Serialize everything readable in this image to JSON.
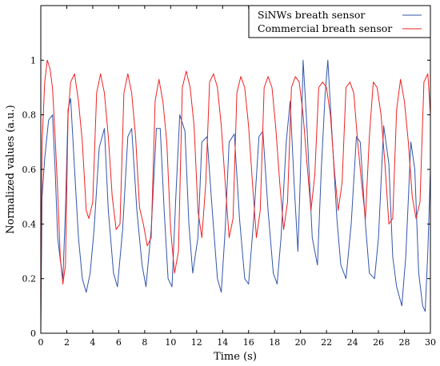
{
  "chart_data": {
    "type": "line",
    "title": "",
    "xlabel": "Time (s)",
    "ylabel": "Normalized values (a.u.)",
    "xlim": [
      0,
      30
    ],
    "ylim": [
      0,
      1.2
    ],
    "xticks": [
      0,
      2,
      4,
      6,
      8,
      10,
      12,
      14,
      16,
      18,
      20,
      22,
      24,
      26,
      28,
      30
    ],
    "yticks": [
      0,
      0.2,
      0.4,
      0.6,
      0.8,
      1
    ],
    "xtick_labels": [
      "0",
      "2",
      "4",
      "6",
      "8",
      "10",
      "12",
      "14",
      "16",
      "18",
      "20",
      "22",
      "24",
      "26",
      "28",
      "30"
    ],
    "ytick_labels": [
      "0",
      "0.2",
      "0.4",
      "0.6",
      "0.8",
      "1"
    ],
    "grid": false,
    "legend": {
      "position": "top-right"
    },
    "series": [
      {
        "name": "SiNWs breath sensor",
        "color": "#3355aa",
        "x": [
          0.0,
          0.1,
          0.3,
          0.6,
          0.9,
          1.1,
          1.3,
          1.5,
          1.7,
          1.9,
          2.1,
          2.3,
          2.6,
          2.9,
          3.2,
          3.5,
          3.8,
          4.1,
          4.5,
          4.9,
          5.2,
          5.6,
          5.9,
          6.3,
          6.7,
          7.0,
          7.4,
          7.8,
          8.1,
          8.5,
          8.9,
          9.2,
          9.5,
          9.8,
          10.1,
          10.4,
          10.7,
          11.1,
          11.4,
          11.7,
          12.1,
          12.4,
          12.8,
          13.2,
          13.6,
          13.9,
          14.2,
          14.5,
          14.9,
          15.3,
          15.7,
          16.0,
          16.4,
          16.8,
          17.1,
          17.5,
          17.9,
          18.2,
          18.5,
          18.9,
          19.2,
          19.5,
          19.8,
          20.0,
          20.2,
          20.5,
          20.9,
          21.3,
          21.6,
          21.9,
          22.1,
          22.4,
          22.8,
          23.1,
          23.5,
          23.9,
          24.3,
          24.6,
          25.0,
          25.3,
          25.7,
          26.0,
          26.4,
          26.8,
          27.1,
          27.4,
          27.8,
          28.1,
          28.5,
          28.8,
          29.1,
          29.4,
          29.6,
          29.8,
          30.0
        ],
        "y": [
          0.0,
          0.5,
          0.64,
          0.78,
          0.8,
          0.6,
          0.35,
          0.27,
          0.2,
          0.45,
          0.82,
          0.86,
          0.6,
          0.35,
          0.2,
          0.15,
          0.22,
          0.38,
          0.68,
          0.75,
          0.45,
          0.22,
          0.17,
          0.38,
          0.72,
          0.75,
          0.45,
          0.25,
          0.17,
          0.38,
          0.75,
          0.75,
          0.45,
          0.2,
          0.17,
          0.5,
          0.8,
          0.74,
          0.4,
          0.22,
          0.35,
          0.7,
          0.72,
          0.45,
          0.2,
          0.15,
          0.38,
          0.7,
          0.73,
          0.42,
          0.2,
          0.18,
          0.42,
          0.72,
          0.74,
          0.45,
          0.22,
          0.18,
          0.35,
          0.7,
          0.85,
          0.55,
          0.3,
          0.6,
          1.0,
          0.75,
          0.35,
          0.25,
          0.6,
          0.88,
          1.0,
          0.75,
          0.42,
          0.25,
          0.2,
          0.4,
          0.72,
          0.7,
          0.4,
          0.22,
          0.2,
          0.35,
          0.76,
          0.62,
          0.28,
          0.17,
          0.1,
          0.28,
          0.7,
          0.6,
          0.22,
          0.1,
          0.08,
          0.3,
          0.6
        ]
      },
      {
        "name": "Commercial breath sensor",
        "color": "#ee2222",
        "x": [
          0.0,
          0.1,
          0.3,
          0.5,
          0.7,
          0.9,
          1.1,
          1.3,
          1.5,
          1.7,
          1.9,
          2.1,
          2.3,
          2.6,
          2.9,
          3.2,
          3.5,
          3.7,
          4.0,
          4.3,
          4.6,
          4.9,
          5.2,
          5.5,
          5.8,
          6.1,
          6.4,
          6.7,
          7.0,
          7.3,
          7.6,
          7.9,
          8.2,
          8.5,
          8.8,
          9.1,
          9.4,
          9.7,
          10.0,
          10.3,
          10.6,
          10.9,
          11.2,
          11.5,
          11.8,
          12.1,
          12.4,
          12.7,
          13.0,
          13.3,
          13.6,
          13.9,
          14.2,
          14.5,
          14.8,
          15.1,
          15.4,
          15.7,
          16.0,
          16.3,
          16.6,
          16.9,
          17.2,
          17.5,
          17.8,
          18.1,
          18.4,
          18.7,
          19.0,
          19.3,
          19.6,
          19.9,
          20.2,
          20.5,
          20.8,
          21.1,
          21.4,
          21.7,
          22.0,
          22.3,
          22.6,
          22.9,
          23.2,
          23.5,
          23.8,
          24.1,
          24.4,
          24.7,
          25.0,
          25.3,
          25.6,
          25.9,
          26.2,
          26.5,
          26.8,
          27.1,
          27.4,
          27.7,
          28.0,
          28.3,
          28.6,
          28.9,
          29.2,
          29.5,
          29.8,
          30.0
        ],
        "y": [
          0.05,
          0.7,
          0.92,
          1.0,
          0.97,
          0.9,
          0.72,
          0.52,
          0.28,
          0.18,
          0.25,
          0.8,
          0.92,
          0.95,
          0.85,
          0.7,
          0.45,
          0.42,
          0.48,
          0.88,
          0.95,
          0.88,
          0.72,
          0.5,
          0.38,
          0.4,
          0.88,
          0.95,
          0.88,
          0.72,
          0.46,
          0.4,
          0.32,
          0.35,
          0.85,
          0.93,
          0.85,
          0.7,
          0.38,
          0.22,
          0.3,
          0.9,
          0.96,
          0.9,
          0.76,
          0.45,
          0.35,
          0.55,
          0.92,
          0.95,
          0.9,
          0.76,
          0.55,
          0.35,
          0.42,
          0.88,
          0.94,
          0.9,
          0.76,
          0.55,
          0.35,
          0.45,
          0.9,
          0.94,
          0.9,
          0.75,
          0.55,
          0.38,
          0.48,
          0.9,
          0.94,
          0.92,
          0.8,
          0.62,
          0.45,
          0.58,
          0.9,
          0.92,
          0.9,
          0.8,
          0.6,
          0.45,
          0.55,
          0.9,
          0.92,
          0.88,
          0.7,
          0.55,
          0.42,
          0.72,
          0.92,
          0.9,
          0.8,
          0.62,
          0.4,
          0.42,
          0.82,
          0.93,
          0.85,
          0.7,
          0.5,
          0.42,
          0.48,
          0.92,
          0.95,
          0.8
        ]
      }
    ]
  }
}
